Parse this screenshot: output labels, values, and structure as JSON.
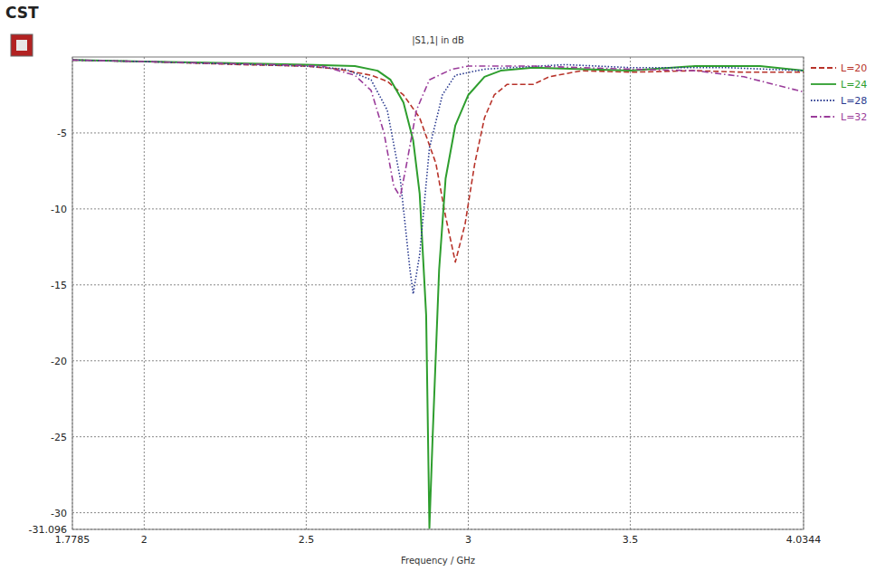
{
  "chart_data": {
    "type": "line",
    "title": "|S1,1| in dB",
    "brand": "CST",
    "x_label": "Frequency / GHz",
    "xlim": [
      1.7785,
      4.0344
    ],
    "xticks": [
      1.7785,
      2,
      2.5,
      3,
      3.5,
      4.0344
    ],
    "ylim": [
      -31.096,
      0
    ],
    "yticks": [
      -31.096,
      -30,
      -25,
      -20,
      -15,
      -10,
      -5
    ],
    "grid": true,
    "legend": "right",
    "series": [
      {
        "name": "L=20",
        "color": "#b8332a",
        "line_style": "dashed",
        "x": [
          1.7785,
          2.0,
          2.3,
          2.5,
          2.6,
          2.7,
          2.75,
          2.8,
          2.85,
          2.9,
          2.93,
          2.96,
          2.99,
          3.02,
          3.05,
          3.08,
          3.12,
          3.2,
          3.25,
          3.35,
          3.5,
          3.7,
          3.85,
          4.0344
        ],
        "values": [
          -0.2,
          -0.3,
          -0.5,
          -0.6,
          -0.8,
          -1.2,
          -1.6,
          -2.5,
          -4,
          -7,
          -10.5,
          -13.5,
          -11,
          -7,
          -4,
          -2.5,
          -1.8,
          -1.8,
          -1.3,
          -0.9,
          -1.0,
          -0.9,
          -1.0,
          -1.0
        ]
      },
      {
        "name": "L=24",
        "color": "#2e9e2e",
        "line_style": "solid",
        "x": [
          1.7785,
          2.0,
          2.5,
          2.65,
          2.72,
          2.76,
          2.8,
          2.83,
          2.85,
          2.87,
          2.88,
          2.89,
          2.91,
          2.93,
          2.96,
          3.0,
          3.05,
          3.1,
          3.2,
          3.5,
          3.7,
          3.9,
          4.0344
        ],
        "values": [
          -0.2,
          -0.3,
          -0.5,
          -0.6,
          -0.9,
          -1.5,
          -3,
          -5.5,
          -9,
          -17,
          -31,
          -25,
          -14,
          -8,
          -4.5,
          -2.5,
          -1.3,
          -0.9,
          -0.7,
          -0.9,
          -0.6,
          -0.6,
          -0.9
        ]
      },
      {
        "name": "L=28",
        "color": "#2a3a8f",
        "line_style": "dotted",
        "x": [
          1.7785,
          2.0,
          2.5,
          2.62,
          2.7,
          2.75,
          2.79,
          2.82,
          2.83,
          2.85,
          2.88,
          2.92,
          2.96,
          3.05,
          3.3,
          3.5,
          3.8,
          4.0344
        ],
        "values": [
          -0.2,
          -0.3,
          -0.6,
          -0.8,
          -1.5,
          -3.5,
          -8,
          -14,
          -15.6,
          -13,
          -6,
          -2.5,
          -1.2,
          -0.8,
          -0.5,
          -0.7,
          -0.7,
          -0.9
        ]
      },
      {
        "name": "L=32",
        "color": "#9a3c9a",
        "line_style": "dashdot",
        "x": [
          1.7785,
          2.0,
          2.4,
          2.55,
          2.65,
          2.7,
          2.74,
          2.77,
          2.79,
          2.81,
          2.84,
          2.88,
          2.95,
          3.0,
          3.2,
          3.5,
          3.7,
          3.85,
          4.0344
        ],
        "values": [
          -0.2,
          -0.3,
          -0.5,
          -0.6,
          -1.2,
          -2.2,
          -5,
          -8.5,
          -9.2,
          -7,
          -3.5,
          -1.5,
          -0.8,
          -0.6,
          -0.6,
          -0.8,
          -0.9,
          -1.3,
          -2.3
        ]
      }
    ]
  }
}
